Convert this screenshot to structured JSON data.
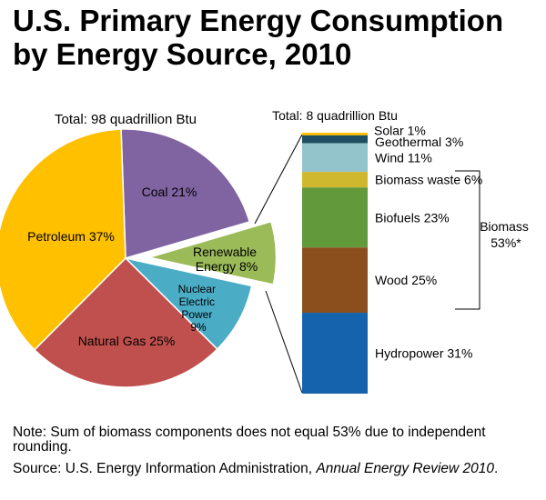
{
  "title": {
    "line1": "U.S. Primary Energy Consumption",
    "line2": "by Energy Source, 2010"
  },
  "chart_data": [
    {
      "type": "pie",
      "title": "Total:  98 quadrillion Btu",
      "slices": [
        {
          "label": "Coal 21%",
          "value": 21,
          "color": "#8064a2"
        },
        {
          "label": "Renewable Energy 8%",
          "value": 8,
          "color": "#9bbb59",
          "exploded": true
        },
        {
          "label": "Nuclear Electric Power 9%",
          "value": 9,
          "color": "#4bacc6"
        },
        {
          "label": "Natural Gas  25%",
          "value": 25,
          "color": "#c0504d"
        },
        {
          "label": "Petroleum  37%",
          "value": 37,
          "color": "#ffc000"
        }
      ]
    },
    {
      "type": "bar",
      "stacked": true,
      "title": "Total:  8 quadrillion Btu",
      "categories": [
        "Solar",
        "Geothermal",
        "Wind",
        "Biomass waste",
        "Biofuels",
        "Wood",
        "Hydropower"
      ],
      "values": [
        1,
        3,
        11,
        6,
        23,
        25,
        31
      ],
      "labels": [
        "Solar  1%",
        "Geothermal  3%",
        "Wind  11%",
        "Biomass waste 6%",
        "Biofuels  23%",
        "Wood 25%",
        "Hydropower 31%"
      ],
      "colors": [
        "#ffc000",
        "#1f4e60",
        "#93c4cc",
        "#d0b82e",
        "#62993a",
        "#8a4f1c",
        "#1563ad"
      ],
      "bracket": {
        "label_line1": "Biomass",
        "label_line2": "53%*"
      }
    }
  ],
  "note": "Note: Sum of biomass components does not equal 53% due to independent rounding.",
  "source": {
    "prefix": "Source: U.S. Energy Information Administration, ",
    "italic": "Annual Energy Review 2010",
    "suffix": "."
  }
}
